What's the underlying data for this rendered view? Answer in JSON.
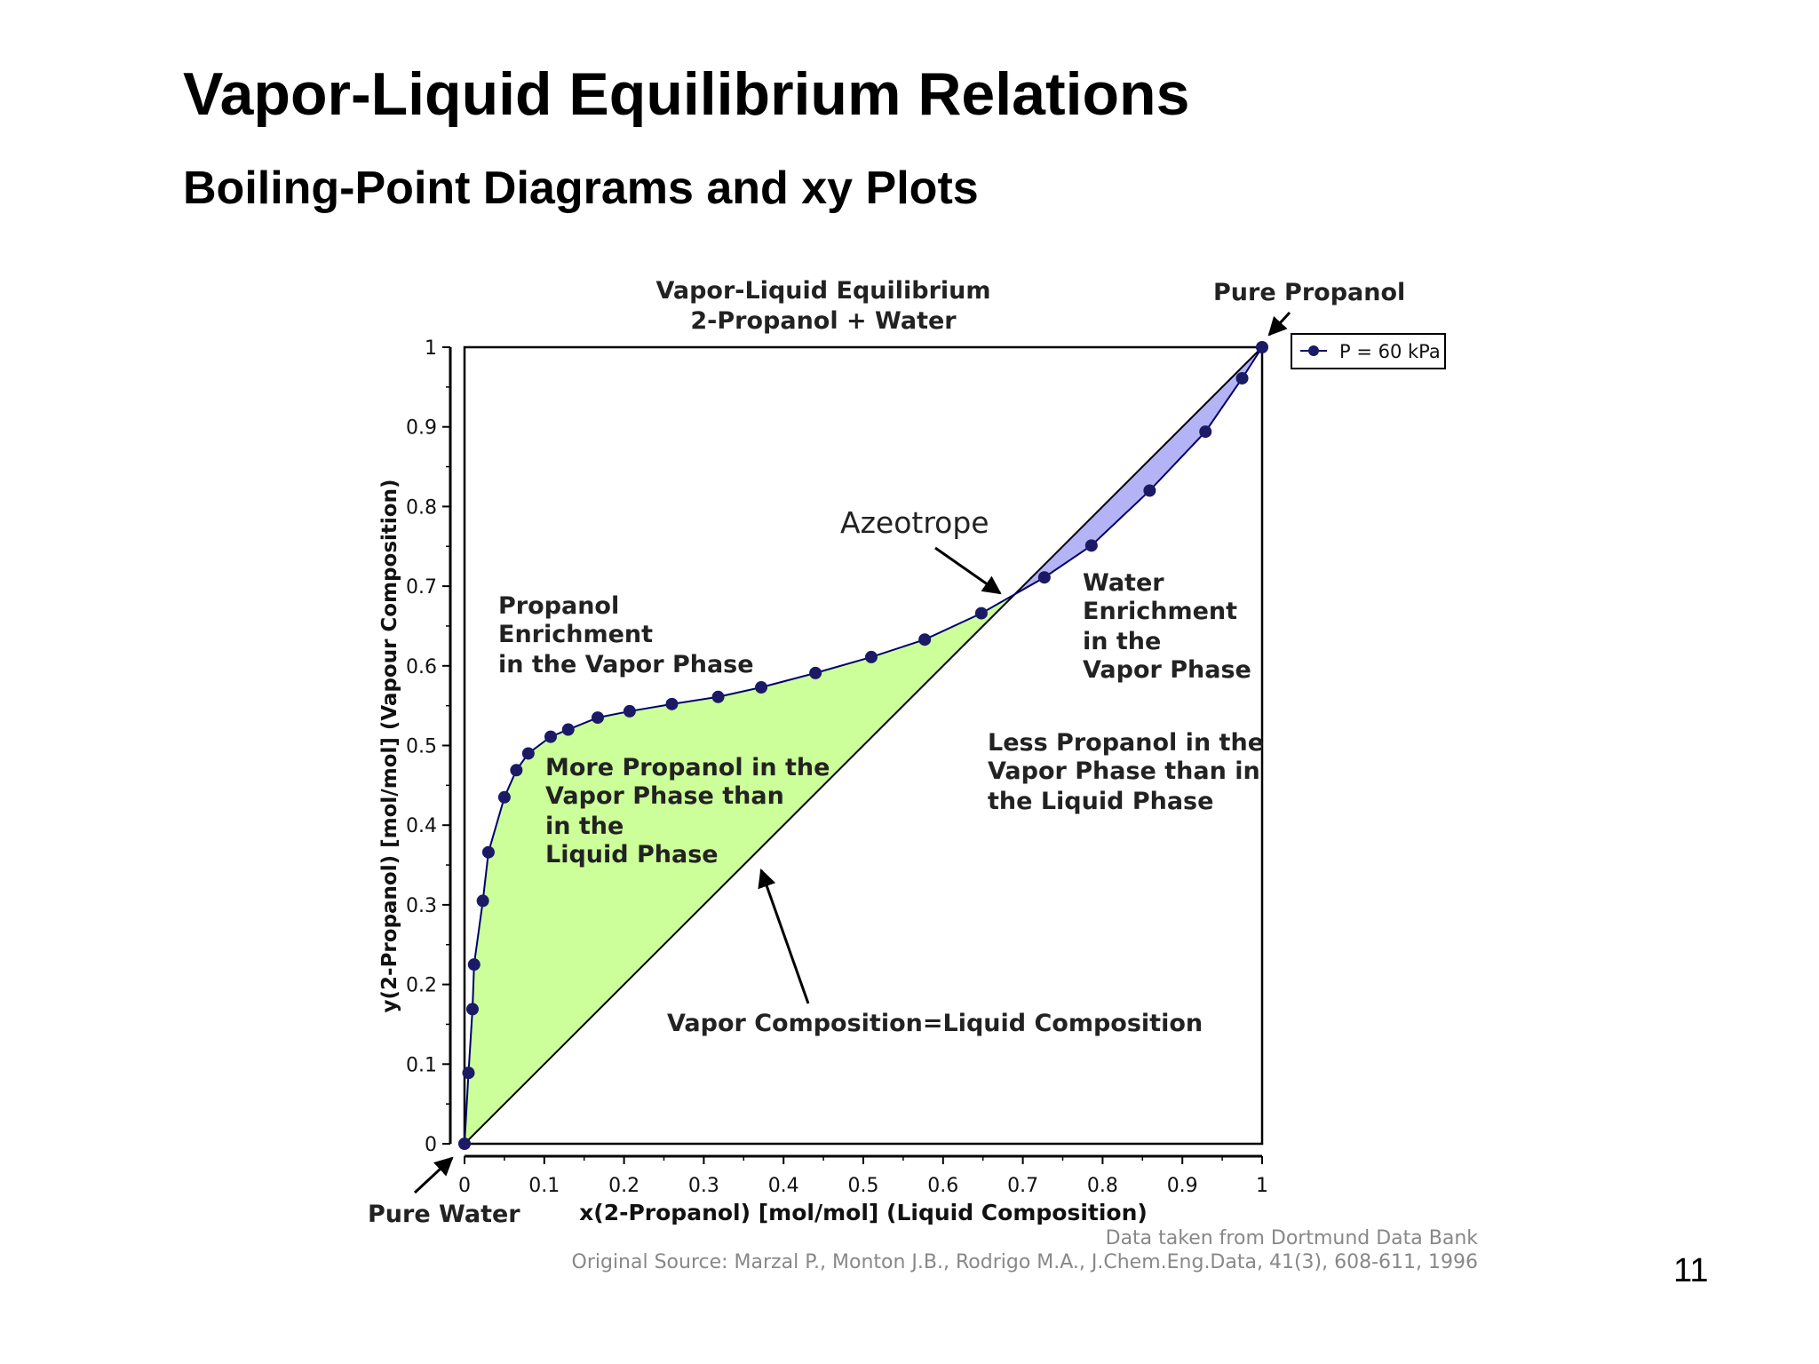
{
  "slide": {
    "title": "Vapor-Liquid Equilibrium Relations",
    "subtitle": "Boiling-Point Diagrams and xy Plots",
    "page_number": "11"
  },
  "colors": {
    "enrichment_fill": "#ccff99",
    "water_enrichment_fill": "#b3b3f5",
    "marker": "#1a1a66",
    "line": "#00006b",
    "axis": "#000000",
    "source_text": "#888888"
  },
  "chart_data": {
    "type": "line",
    "title": [
      "Vapor-Liquid Equilibrium",
      "2-Propanol + Water"
    ],
    "xlabel": "x(2-Propanol) [mol/mol] (Liquid Composition)",
    "ylabel": "y(2-Propanol) [mol/mol] (Vapour Composition)",
    "xlim": [
      0,
      1
    ],
    "ylim": [
      0,
      1
    ],
    "x_ticks": [
      "0",
      "0.1",
      "0.2",
      "0.3",
      "0.4",
      "0.5",
      "0.6",
      "0.7",
      "0.8",
      "0.9",
      "1"
    ],
    "y_ticks": [
      "0",
      "0.1",
      "0.2",
      "0.3",
      "0.4",
      "0.5",
      "0.6",
      "0.7",
      "0.8",
      "0.9",
      "1"
    ],
    "grid": false,
    "legend": {
      "position": "top-right",
      "entries": [
        "P = 60 kPa"
      ]
    },
    "series": [
      {
        "name": "P = 60 kPa",
        "marker": "circle",
        "x": [
          0,
          0.005,
          0.01,
          0.012,
          0.023,
          0.03,
          0.05,
          0.065,
          0.08,
          0.108,
          0.13,
          0.167,
          0.207,
          0.26,
          0.318,
          0.372,
          0.44,
          0.51,
          0.577,
          0.648,
          0.727,
          0.786,
          0.859,
          0.929,
          0.975,
          1.0
        ],
        "y": [
          0,
          0.089,
          0.169,
          0.225,
          0.305,
          0.366,
          0.435,
          0.469,
          0.49,
          0.511,
          0.52,
          0.535,
          0.543,
          0.552,
          0.561,
          0.573,
          0.591,
          0.611,
          0.633,
          0.666,
          0.711,
          0.751,
          0.82,
          0.894,
          0.961,
          1.0
        ]
      },
      {
        "name": "",
        "role": "diagonal y = x",
        "x": [
          0,
          1
        ],
        "y": [
          0,
          1
        ]
      }
    ],
    "annotations": {
      "pure_propanol": "Pure Propanol",
      "pure_water": "Pure Water",
      "azeotrope": "Azeotrope",
      "propanol_enrichment": [
        "Propanol",
        "Enrichment",
        "in the Vapor Phase"
      ],
      "more_propanol": [
        "More Propanol in the",
        "Vapor Phase than",
        "in the",
        "Liquid Phase"
      ],
      "water_enrichment": [
        "Water",
        "Enrichment",
        "in the",
        "Vapor Phase"
      ],
      "less_propanol": [
        "Less Propanol in the",
        "Vapor Phase than in",
        "the Liquid Phase"
      ],
      "diagonal_label": "Vapor Composition=Liquid Composition"
    },
    "source": [
      "Data taken from Dortmund Data Bank",
      "Original Source: Marzal P., Monton J.B., Rodrigo M.A., J.Chem.Eng.Data, 41(3), 608-611, 1996"
    ]
  }
}
